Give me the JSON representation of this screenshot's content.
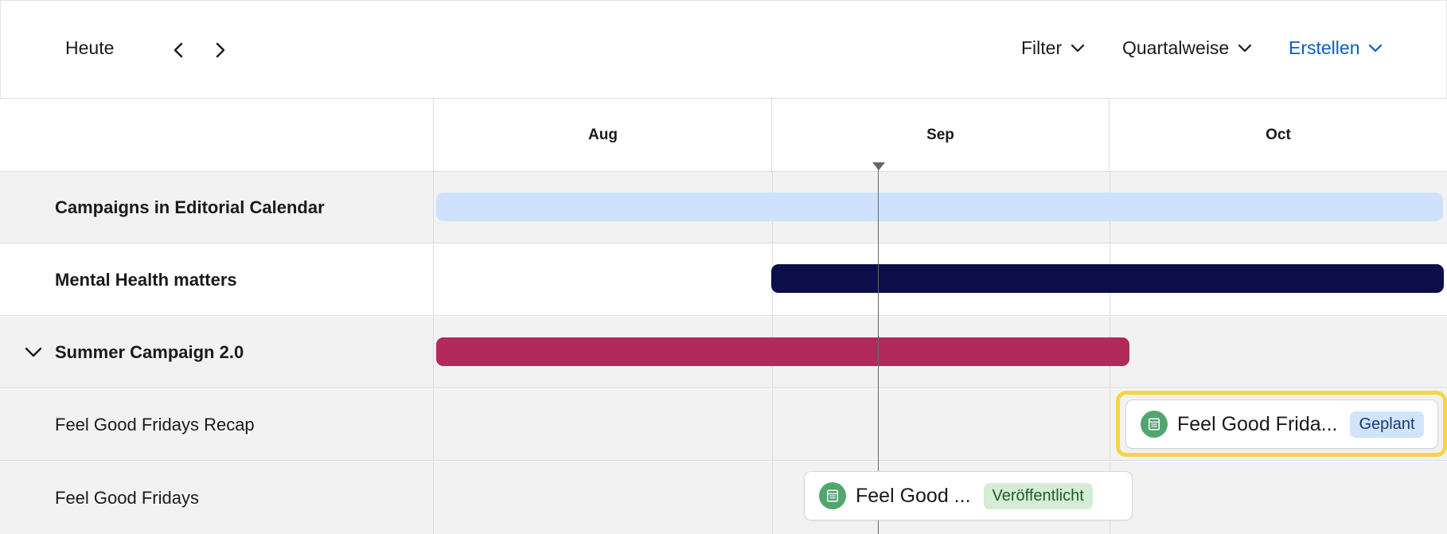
{
  "toolbar": {
    "today_label": "Heute",
    "prev_icon": "chevron-left-icon",
    "next_icon": "chevron-right-icon",
    "filter_label": "Filter",
    "view_label": "Quartalweise",
    "create_label": "Erstellen"
  },
  "timeline": {
    "months": [
      "Aug",
      "Sep",
      "Oct"
    ]
  },
  "rows": [
    {
      "label": "Campaigns in Editorial Calendar"
    },
    {
      "label": "Mental Health matters"
    },
    {
      "label": "Summer Campaign 2.0"
    },
    {
      "label": "Feel Good Fridays Recap"
    },
    {
      "label": "Feel Good Fridays"
    }
  ],
  "cards": [
    {
      "title": "Feel Good Frida...",
      "status": "Geplant"
    },
    {
      "title": "Feel Good ...",
      "status": "Veröffentlicht"
    }
  ],
  "colors": {
    "accent": "#0b5cc5",
    "campaigns_bar": "#cfe2fd",
    "mental_health_bar": "#0b0e48",
    "summer_bar": "#b22a5b",
    "content_icon": "#52a56f",
    "selection_highlight": "#f6d44a"
  }
}
